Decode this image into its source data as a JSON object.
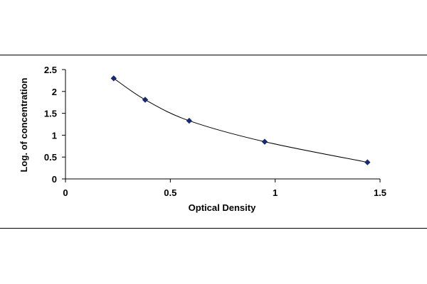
{
  "chart_data": {
    "type": "scatter",
    "title": "",
    "xlabel": "Optical Density",
    "ylabel": "Log. of concentration",
    "xlim": [
      0,
      1.5
    ],
    "ylim": [
      0,
      2.5
    ],
    "x_ticks": [
      "0",
      "0.5",
      "1",
      "1.5"
    ],
    "y_ticks": [
      "0",
      "0.5",
      "1",
      "1.5",
      "2",
      "2.5"
    ],
    "grid": false,
    "legend": "none",
    "series": [
      {
        "x": [
          0.23,
          0.38,
          0.59,
          0.95,
          1.44
        ],
        "y": [
          2.3,
          1.81,
          1.33,
          0.85,
          0.38
        ],
        "marker": "diamond",
        "line": "smooth",
        "color": "#1a2a6c"
      }
    ]
  }
}
